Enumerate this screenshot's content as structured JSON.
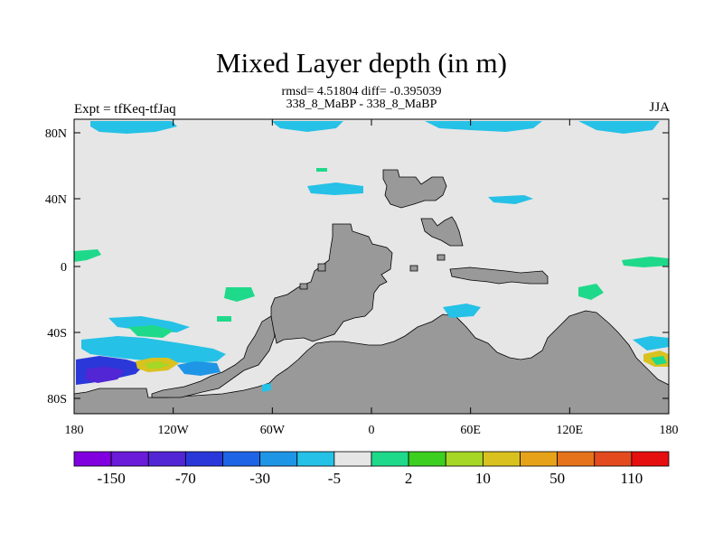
{
  "chart_data": {
    "type": "heatmap",
    "title": "Mixed Layer depth (in m)",
    "subtitle_line1": "rmsd= 4.51804  diff= -0.395039",
    "subtitle_line2": "338_8_MaBP - 338_8_MaBP",
    "left_label": "Expt = tfKeq-tfJaq",
    "right_label": "JJA",
    "x_ticks": [
      "180",
      "120W",
      "60W",
      "0",
      "60E",
      "120E",
      "180"
    ],
    "y_ticks": [
      "80N",
      "40N",
      "0",
      "40S",
      "80S"
    ],
    "xlim": [
      -180,
      180
    ],
    "ylim": [
      -90,
      90
    ],
    "colorbar": {
      "labels": [
        "-150",
        "-70",
        "-30",
        "-5",
        "2",
        "10",
        "50",
        "110"
      ],
      "colors": [
        "#8000e0",
        "#6a1cd8",
        "#5226d4",
        "#2b38d9",
        "#1e64e6",
        "#1f95e6",
        "#26c1e6",
        "#e6e6e6",
        "#1fd98a",
        "#3ccf1f",
        "#a6d626",
        "#d9c21f",
        "#e6a319",
        "#e67319",
        "#e34a1e",
        "#e60f0f"
      ]
    },
    "colors": {
      "background": "#e6e6e6",
      "land": "#999999"
    }
  }
}
